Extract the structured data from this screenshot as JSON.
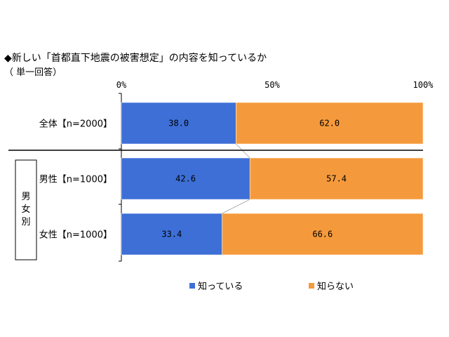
{
  "title": "◆新しい「首都直下地震の被害想定」の内容を知っているか",
  "subtitle": "（ 単一回答）",
  "group_label": "男女別",
  "colors": {
    "know": "#3d6fd6",
    "dont_know": "#f59a3c"
  },
  "chart_data": {
    "type": "bar",
    "orientation": "horizontal",
    "stacked": "percent",
    "x_ticks": [
      "0%",
      "50%",
      "100%"
    ],
    "xlim": [
      0,
      100
    ],
    "categories": [
      "全体【n=2000】",
      "男性【n=1000】",
      "女性【n=1000】"
    ],
    "series": [
      {
        "name": "知っている",
        "values": [
          38.0,
          42.6,
          33.4
        ],
        "labels": [
          "38.0",
          "42.6",
          "33.4"
        ]
      },
      {
        "name": "知らない",
        "values": [
          62.0,
          57.4,
          66.6
        ],
        "labels": [
          "62.0",
          "57.4",
          "66.6"
        ]
      }
    ],
    "legend_position": "bottom",
    "grid": false
  }
}
